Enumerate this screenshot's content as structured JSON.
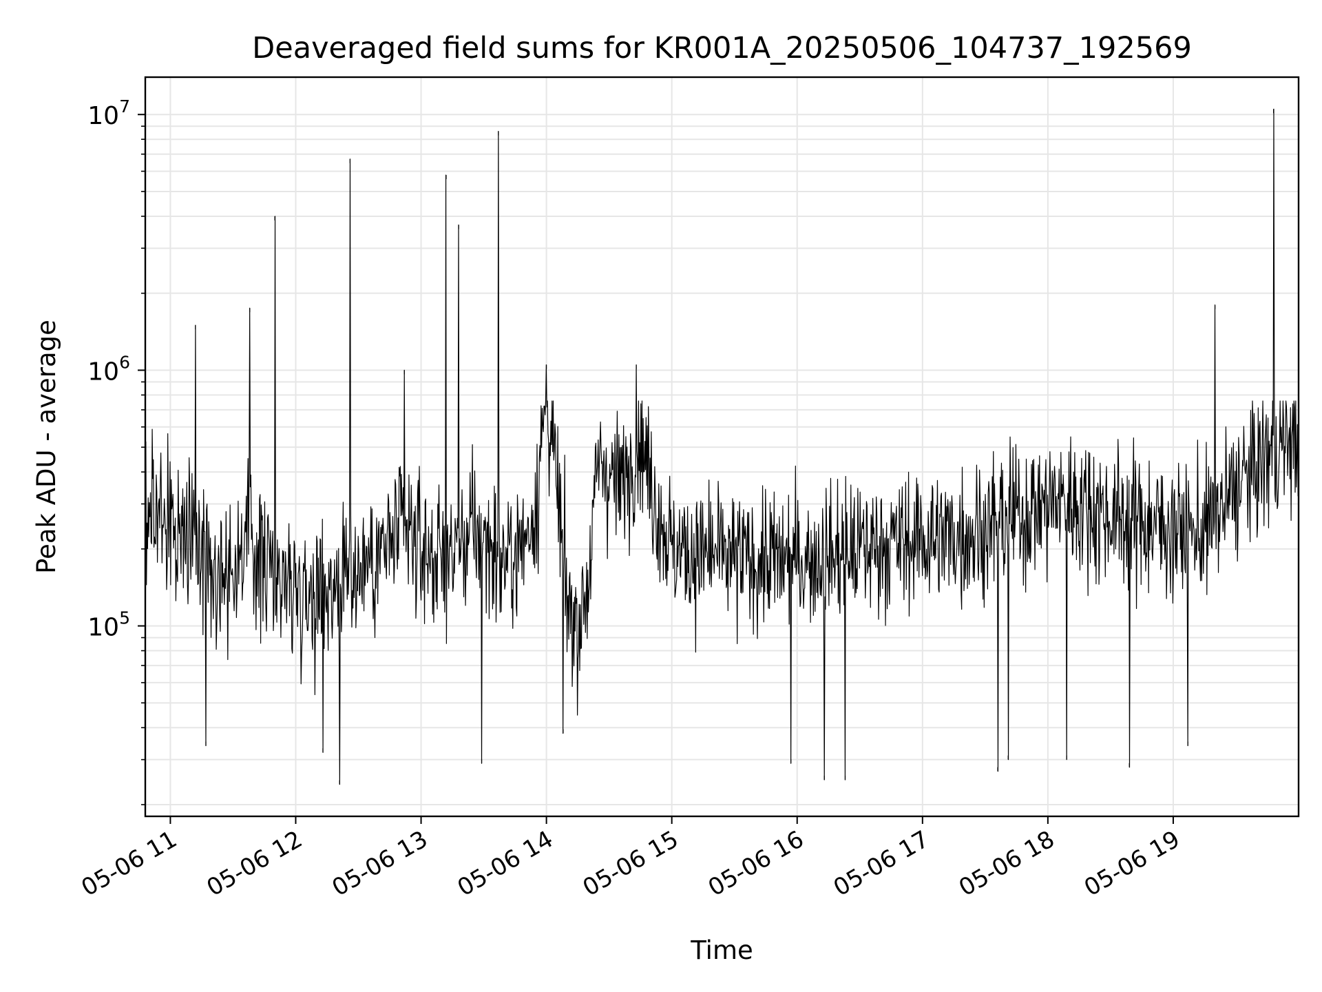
{
  "chart_data": {
    "type": "line",
    "title": "Deaveraged field sums for KR001A_20250506_104737_192569",
    "xlabel": "Time",
    "ylabel": "Peak ADU - average",
    "yscale": "log",
    "ylim": [
      18000,
      14000000
    ],
    "xlim": [
      "05-06 10:48",
      "05-06 20:00"
    ],
    "grid": true,
    "line_color": "#000000",
    "grid_color": "#e6e6e6",
    "x_ticks": [
      "05-06 11",
      "05-06 12",
      "05-06 13",
      "05-06 14",
      "05-06 15",
      "05-06 16",
      "05-06 17",
      "05-06 18",
      "05-06 19"
    ],
    "y_ticks": [
      {
        "value": 100000,
        "base": "10",
        "exp": "5"
      },
      {
        "value": 1000000,
        "base": "10",
        "exp": "6"
      },
      {
        "value": 10000000,
        "base": "10",
        "exp": "7"
      }
    ],
    "series": [
      {
        "x": [
          "05-06 10:48",
          "05-06 10:55",
          "05-06 11:00",
          "05-06 11:05",
          "05-06 11:10",
          "05-06 11:15",
          "05-06 11:20",
          "05-06 11:25",
          "05-06 11:30",
          "05-06 11:35",
          "05-06 11:38",
          "05-06 11:40",
          "05-06 11:45",
          "05-06 11:50",
          "05-06 11:55",
          "05-06 12:00",
          "05-06 12:05",
          "05-06 12:10",
          "05-06 12:15",
          "05-06 12:20",
          "05-06 12:25",
          "05-06 12:30",
          "05-06 12:35",
          "05-06 12:40",
          "05-06 12:45",
          "05-06 12:50",
          "05-06 12:55",
          "05-06 13:00",
          "05-06 13:05",
          "05-06 13:10",
          "05-06 13:15",
          "05-06 13:20",
          "05-06 13:25",
          "05-06 13:30",
          "05-06 13:35",
          "05-06 13:40",
          "05-06 13:45",
          "05-06 13:50",
          "05-06 13:55",
          "05-06 14:00",
          "05-06 14:05",
          "05-06 14:10",
          "05-06 14:15",
          "05-06 14:20",
          "05-06 14:25",
          "05-06 14:30",
          "05-06 14:35",
          "05-06 14:40",
          "05-06 14:45",
          "05-06 14:50",
          "05-06 15:00",
          "05-06 15:10",
          "05-06 15:20",
          "05-06 15:30",
          "05-06 15:40",
          "05-06 15:50",
          "05-06 16:00",
          "05-06 16:10",
          "05-06 16:20",
          "05-06 16:30",
          "05-06 16:40",
          "05-06 16:50",
          "05-06 17:00",
          "05-06 17:10",
          "05-06 17:20",
          "05-06 17:30",
          "05-06 17:40",
          "05-06 17:50",
          "05-06 18:00",
          "05-06 18:10",
          "05-06 18:20",
          "05-06 18:30",
          "05-06 18:40",
          "05-06 18:50",
          "05-06 19:00",
          "05-06 19:10",
          "05-06 19:20",
          "05-06 19:30",
          "05-06 19:40",
          "05-06 19:50",
          "05-06 20:00"
        ],
        "y": [
          300000,
          280000,
          260000,
          240000,
          220000,
          200000,
          180000,
          170000,
          170000,
          200000,
          240000,
          200000,
          180000,
          160000,
          150000,
          145000,
          140000,
          140000,
          145000,
          150000,
          160000,
          170000,
          180000,
          190000,
          210000,
          230000,
          220000,
          200000,
          190000,
          180000,
          190000,
          210000,
          230000,
          220000,
          200000,
          180000,
          190000,
          220000,
          300000,
          800000,
          350000,
          120000,
          100000,
          150000,
          450000,
          400000,
          350000,
          420000,
          600000,
          350000,
          200000,
          190000,
          190000,
          180000,
          180000,
          180000,
          180000,
          185000,
          190000,
          200000,
          210000,
          210000,
          220000,
          220000,
          230000,
          240000,
          260000,
          280000,
          300000,
          310000,
          290000,
          270000,
          260000,
          250000,
          240000,
          230000,
          250000,
          350000,
          420000,
          500000,
          550000
        ]
      }
    ],
    "peaks": [
      {
        "x": "05-06 11:12",
        "y": 1500000
      },
      {
        "x": "05-06 11:38",
        "y": 1750000
      },
      {
        "x": "05-06 11:50",
        "y": 4000000
      },
      {
        "x": "05-06 12:26",
        "y": 6700000
      },
      {
        "x": "05-06 12:52",
        "y": 1000000
      },
      {
        "x": "05-06 13:12",
        "y": 5800000
      },
      {
        "x": "05-06 13:18",
        "y": 3700000
      },
      {
        "x": "05-06 13:37",
        "y": 8600000
      },
      {
        "x": "05-06 14:00",
        "y": 1050000
      },
      {
        "x": "05-06 14:43",
        "y": 1050000
      },
      {
        "x": "05-06 19:20",
        "y": 1800000
      },
      {
        "x": "05-06 19:48",
        "y": 10500000
      }
    ],
    "dips": [
      {
        "x": "05-06 11:17",
        "y": 34000
      },
      {
        "x": "05-06 12:13",
        "y": 32000
      },
      {
        "x": "05-06 12:21",
        "y": 24000
      },
      {
        "x": "05-06 13:29",
        "y": 29000
      },
      {
        "x": "05-06 14:08",
        "y": 38000
      },
      {
        "x": "05-06 15:57",
        "y": 29000
      },
      {
        "x": "05-06 16:13",
        "y": 25000
      },
      {
        "x": "05-06 16:23",
        "y": 25000
      },
      {
        "x": "05-06 17:36",
        "y": 27000
      },
      {
        "x": "05-06 17:41",
        "y": 30000
      },
      {
        "x": "05-06 18:09",
        "y": 30000
      },
      {
        "x": "05-06 18:39",
        "y": 28000
      },
      {
        "x": "05-06 19:07",
        "y": 34000
      }
    ]
  }
}
